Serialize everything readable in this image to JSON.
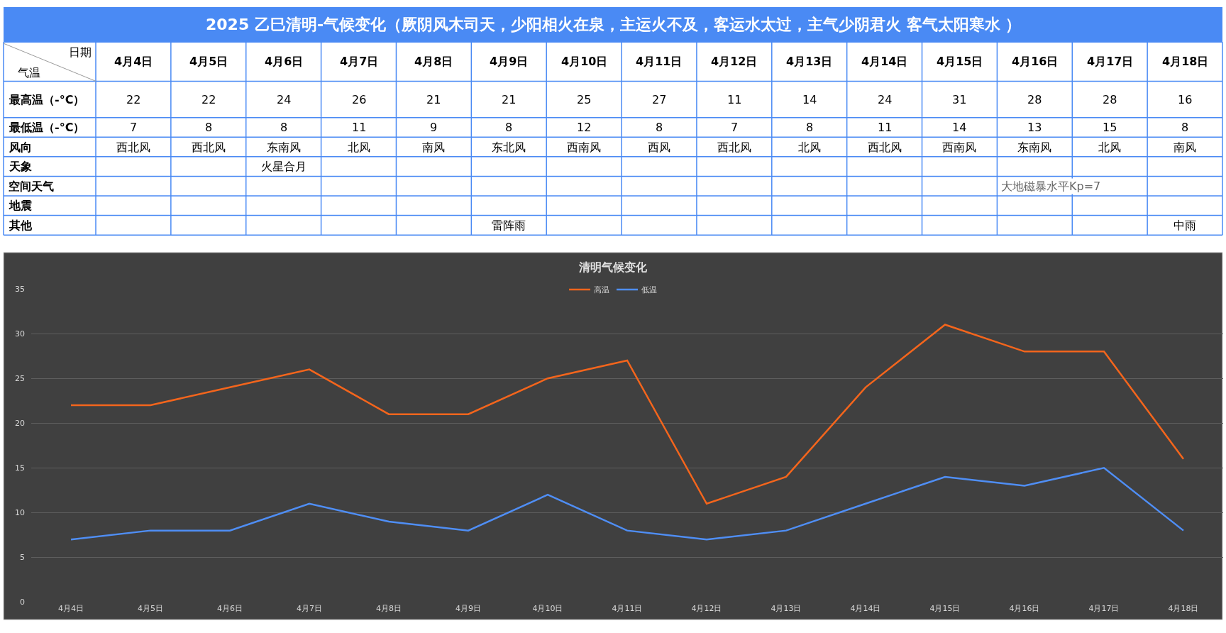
{
  "chart_data": {
    "type": "line",
    "title": "2025 乙巳清明-气候变化（厥阴风木司天，少阳相火在泉，主运火不及，客运水太过，主气少阴君火 客气太阳寒水 ）",
    "subtitle": "清明气候变化",
    "categories": [
      "4月4日",
      "4月5日",
      "4月6日",
      "4月7日",
      "4月8日",
      "4月9日",
      "4月10日",
      "4月11日",
      "4月12日",
      "4月13日",
      "4月14日",
      "4月15日",
      "4月16日",
      "4月17日",
      "4月18日"
    ],
    "series": [
      {
        "name": "高温",
        "color": "#f4651c",
        "values": [
          22,
          22,
          24,
          26,
          21,
          21,
          25,
          27,
          11,
          14,
          24,
          31,
          28,
          28,
          16
        ]
      },
      {
        "name": "低温",
        "color": "#4f8ef5",
        "values": [
          7,
          8,
          8,
          11,
          9,
          8,
          12,
          8,
          7,
          8,
          11,
          14,
          13,
          15,
          8
        ]
      }
    ],
    "ylim": [
      0,
      35
    ],
    "yticks": [
      0,
      5,
      10,
      15,
      20,
      25,
      30,
      35
    ],
    "grid": "y",
    "legend": "top",
    "annotations": [
      "日期",
      "气温",
      "最高温（-°C）",
      "最低温（-°C）",
      "风向",
      "天象",
      "空间天气",
      "地震",
      "其他",
      "22",
      "22",
      "24",
      "26",
      "21",
      "21",
      "25",
      "27",
      "11",
      "14",
      "24",
      "31",
      "28",
      "28",
      "16",
      "7",
      "8",
      "8",
      "11",
      "9",
      "8",
      "12",
      "8",
      "7",
      "8",
      "11",
      "14",
      "13",
      "15",
      "8",
      "西北风",
      "西北风",
      "东南风",
      "北风",
      "南风",
      "东北风",
      "西南风",
      "西风",
      "西北风",
      "北风",
      "西北风",
      "西南风",
      "东南风",
      "北风",
      "南风",
      "火星合月",
      "大地磁暴水平Kp=7",
      "雷阵雨",
      "中雨"
    ]
  }
}
